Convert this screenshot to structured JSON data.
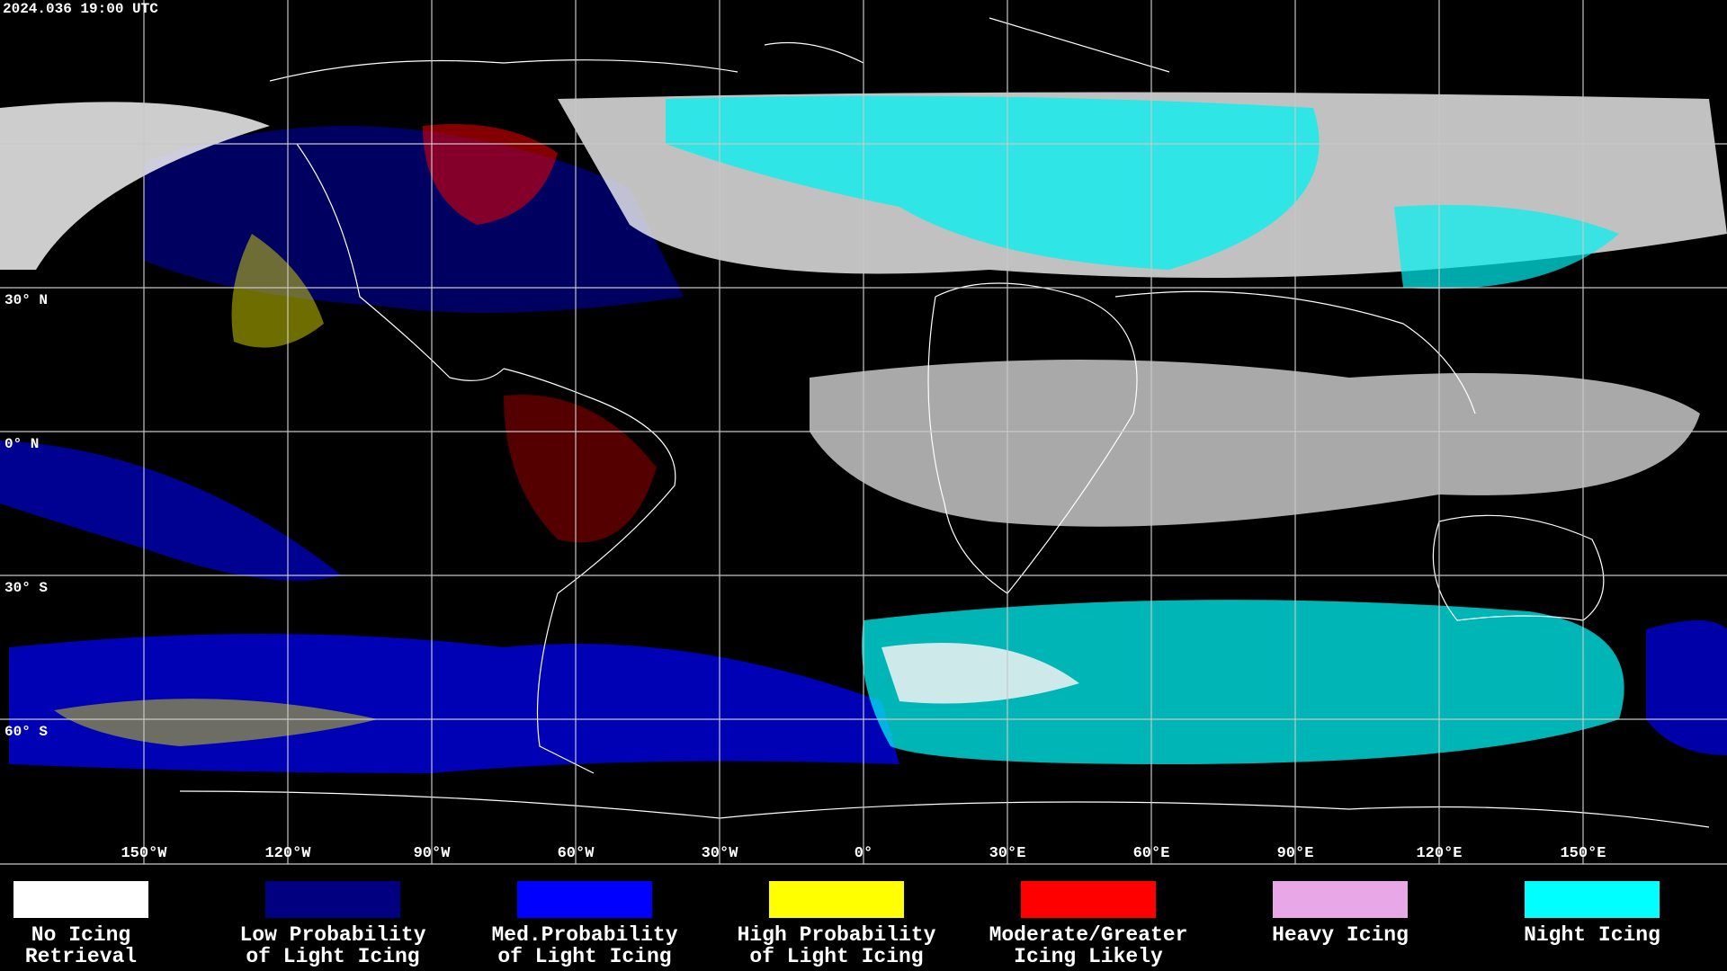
{
  "timestamp": "2024.036 19:00 UTC",
  "lat_labels": [
    "30° N",
    "0° N",
    "30° S",
    "60° S"
  ],
  "lon_labels": [
    "150°W",
    "120°W",
    "90°W",
    "60°W",
    "30°W",
    "0°",
    "30°E",
    "60°E",
    "90°E",
    "120°E",
    "150°E"
  ],
  "legend": [
    {
      "lines": [
        "No Icing",
        "Retrieval"
      ],
      "color": "#ffffff"
    },
    {
      "lines": [
        "Low Probability",
        "of Light Icing"
      ],
      "color": "#000080"
    },
    {
      "lines": [
        "Med.Probability",
        "of Light Icing"
      ],
      "color": "#0000ff"
    },
    {
      "lines": [
        "High Probability",
        "of Light Icing"
      ],
      "color": "#ffff00"
    },
    {
      "lines": [
        "Moderate/Greater",
        "Icing Likely"
      ],
      "color": "#ff0000"
    },
    {
      "lines": [
        "Heavy Icing"
      ],
      "color": "#e8a8e8"
    },
    {
      "lines": [
        "Night Icing"
      ],
      "color": "#00ffff"
    }
  ]
}
